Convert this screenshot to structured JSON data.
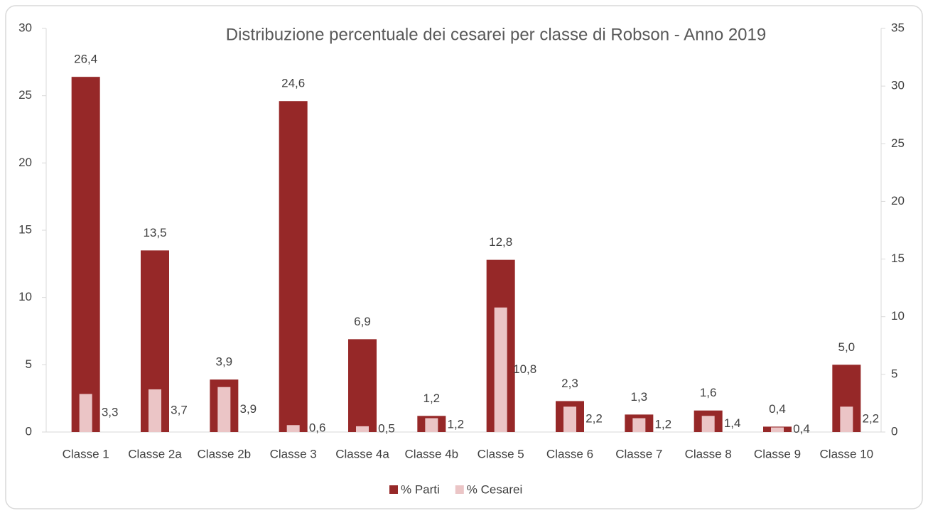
{
  "chart_data": {
    "type": "bar",
    "title": "Distribuzione percentuale dei cesarei per classe di Robson  - Anno 2019",
    "categories": [
      "Classe 1",
      "Classe 2a",
      "Classe 2b",
      "Classe 3",
      "Classe 4a",
      "Classe 4b",
      "Classe 5",
      "Classe 6",
      "Classe 7",
      "Classe 8",
      "Classe 9",
      "Classe 10"
    ],
    "series": [
      {
        "name": "% Parti",
        "color": "#962828",
        "axis": "y",
        "values": [
          26.4,
          13.5,
          3.9,
          24.6,
          6.9,
          1.2,
          12.8,
          2.3,
          1.3,
          1.6,
          0.4,
          5.0
        ],
        "value_labels": [
          "26,4",
          "13,5",
          "3,9",
          "24,6",
          "6,9",
          "1,2",
          "12,8",
          "2,3",
          "1,3",
          "1,6",
          "0,4",
          "5,0"
        ]
      },
      {
        "name": "% Cesarei",
        "color": "#ebc5c6",
        "axis": "y2",
        "values": [
          3.3,
          3.7,
          3.9,
          0.6,
          0.5,
          1.2,
          10.8,
          2.2,
          1.2,
          1.4,
          0.4,
          2.2
        ],
        "value_labels": [
          "3,3",
          "3,7",
          "3,9",
          "0,6",
          "0,5",
          "1,2",
          "10,8",
          "2,2",
          "1,2",
          "1,4",
          "0,4",
          "2,2"
        ]
      }
    ],
    "ylim": [
      0,
      30
    ],
    "yticks": [
      0,
      5,
      10,
      15,
      20,
      25,
      30
    ],
    "y2lim": [
      0,
      35
    ],
    "y2ticks": [
      0,
      5,
      10,
      15,
      20,
      25,
      30,
      35
    ],
    "legend": "bottom"
  }
}
